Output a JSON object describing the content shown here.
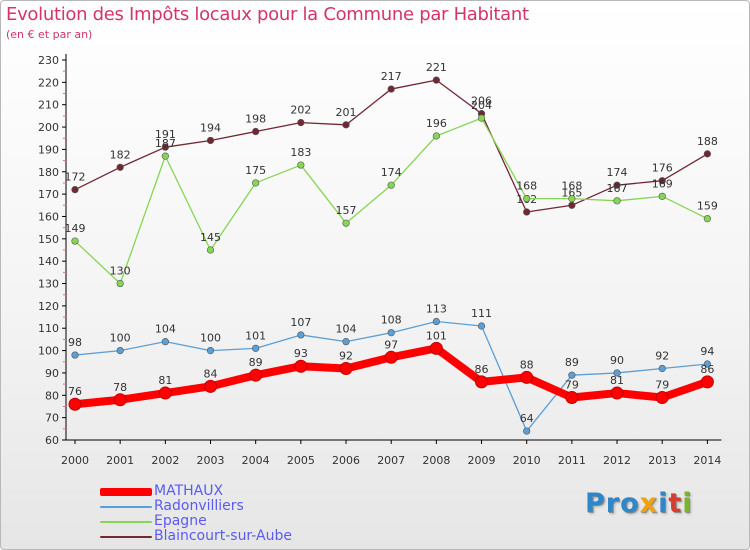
{
  "title": "Evolution des Impôts locaux pour la Commune par Habitant",
  "subtitle": "(en € et par an)",
  "brand": {
    "parts": [
      "Pro",
      "x",
      "i",
      "t",
      "i"
    ],
    "colors": [
      "#2f86c8",
      "#f2a20c",
      "#2f86c8",
      "#d63f2d",
      "#7ab530"
    ]
  },
  "chart_data": {
    "type": "line",
    "title": "Evolution des Impôts locaux pour la Commune par Habitant",
    "subtitle": "(en € et par an)",
    "xlabel": "",
    "ylabel": "",
    "x": [
      "2000",
      "2001",
      "2002",
      "2003",
      "2004",
      "2005",
      "2006",
      "2007",
      "2008",
      "2009",
      "2010",
      "2011",
      "2012",
      "2013",
      "2014"
    ],
    "ylim": [
      60,
      230
    ],
    "yticks": [
      60,
      70,
      80,
      90,
      100,
      110,
      120,
      130,
      140,
      150,
      160,
      170,
      180,
      190,
      200,
      210,
      220,
      230
    ],
    "grid": false,
    "legend": "bottom-left",
    "series": [
      {
        "name": "Blaincourt-sur-Aube",
        "color": "#722732",
        "values": [
          172,
          182,
          191,
          194,
          198,
          202,
          201,
          217,
          221,
          206,
          162,
          165,
          174,
          176,
          188
        ],
        "labels": [
          "172",
          "182",
          "191",
          "194",
          "198",
          "202",
          "201",
          "217",
          "221",
          "206",
          "162",
          "165",
          "174",
          "176",
          "188"
        ]
      },
      {
        "name": "Epagne",
        "color": "#86d654",
        "values": [
          149,
          130,
          187,
          145,
          175,
          183,
          157,
          174,
          196,
          204,
          168,
          168,
          167,
          169,
          159
        ],
        "labels": [
          "149",
          "130",
          "187",
          "145",
          "175",
          "183",
          "157",
          "174",
          "196",
          "204",
          "168",
          "168",
          "167",
          "169",
          "159"
        ]
      },
      {
        "name": "Radonvilliers",
        "color": "#5b9fd6",
        "values": [
          98,
          100,
          104,
          100,
          101,
          107,
          104,
          108,
          113,
          111,
          64,
          89,
          90,
          92,
          94
        ],
        "labels": [
          "98",
          "100",
          "104",
          "100",
          "101",
          "107",
          "104",
          "108",
          "113",
          "111",
          "64",
          "89",
          "90",
          "92",
          "94"
        ]
      },
      {
        "name": "MATHAUX",
        "color": "#ff0000",
        "values": [
          76,
          78,
          81,
          84,
          89,
          93,
          92,
          97,
          101,
          86,
          88,
          79,
          81,
          79,
          86
        ],
        "labels": [
          "76",
          "78",
          "81",
          "84",
          "89",
          "93",
          "92",
          "97",
          "101",
          "86",
          "88",
          "79",
          "81",
          "79",
          "86"
        ]
      }
    ],
    "legend_order": [
      "MATHAUX",
      "Radonvilliers",
      "Epagne",
      "Blaincourt-sur-Aube"
    ]
  }
}
